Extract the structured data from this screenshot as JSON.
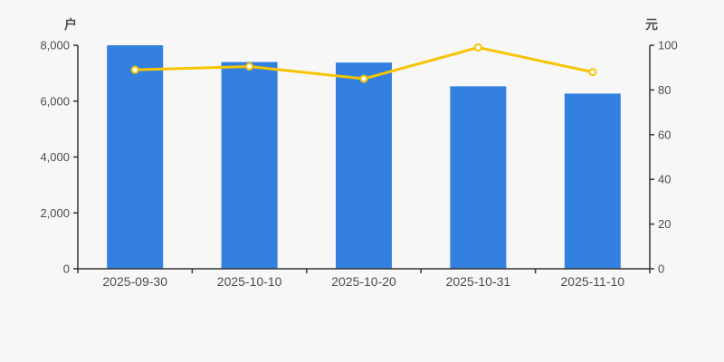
{
  "chart": {
    "background": "#f7f7f7",
    "axis_color": "#333333",
    "text_color": "#4d4d4d"
  },
  "chart_data": {
    "type": "bar",
    "title": "",
    "categories": [
      "2025-09-30",
      "2025-10-10",
      "2025-10-20",
      "2025-10-31",
      "2025-11-10"
    ],
    "series": [
      {
        "name": "户",
        "type": "bar",
        "y_axis": "left",
        "values": [
          8000,
          7400,
          7380,
          6530,
          6270
        ],
        "color": "#3380e0"
      },
      {
        "name": "元",
        "type": "line",
        "y_axis": "right",
        "values": [
          89,
          90.5,
          85,
          99,
          88
        ],
        "color": "#f8c301",
        "marker": {
          "shape": "circle",
          "fill": "#ffffff",
          "stroke": "#f8c301"
        }
      }
    ],
    "left_axis": {
      "label": "户",
      "min": 0,
      "max": 8000,
      "tick_interval": 2000,
      "tick_labels": [
        "0",
        "2,000",
        "4,000",
        "6,000",
        "8,000"
      ]
    },
    "right_axis": {
      "label": "元",
      "min": 0,
      "max": 100,
      "tick_interval": 20,
      "tick_labels": [
        "0",
        "20",
        "40",
        "60",
        "80",
        "100"
      ]
    },
    "grid": false,
    "legend": false
  }
}
